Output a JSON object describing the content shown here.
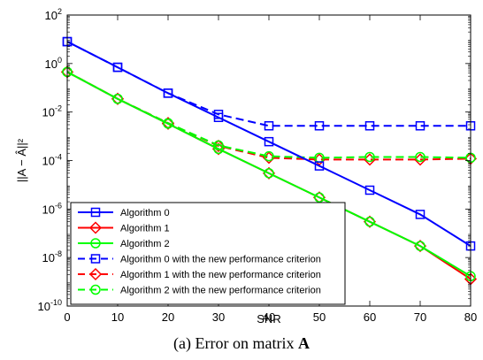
{
  "chart_data": {
    "type": "line",
    "xlabel": "SNR",
    "ylabel": "||A − Â||²",
    "x": [
      0,
      10,
      20,
      30,
      40,
      50,
      60,
      70,
      80
    ],
    "xlim": [
      0,
      80
    ],
    "ylim": [
      1e-10,
      100
    ],
    "y_scale": "log",
    "x_ticks": [
      "0",
      "10",
      "20",
      "30",
      "40",
      "50",
      "60",
      "70",
      "80"
    ],
    "y_ticks": [
      {
        "base": "10",
        "exp": "2",
        "value": 100
      },
      {
        "base": "10",
        "exp": "0",
        "value": 1
      },
      {
        "base": "10",
        "exp": "-2",
        "value": 0.01
      },
      {
        "base": "10",
        "exp": "-4",
        "value": 0.0001
      },
      {
        "base": "10",
        "exp": "-6",
        "value": 1e-06
      },
      {
        "base": "10",
        "exp": "-8",
        "value": 1e-08
      },
      {
        "base": "10",
        "exp": "-10",
        "value": 1e-10
      }
    ],
    "legend_position": "bottom-left",
    "series": [
      {
        "name": "Algorithm 0",
        "color": "#0000ff",
        "dash": "solid",
        "marker": "square",
        "values": [
          8,
          0.7,
          0.06,
          0.006,
          0.0006,
          6e-05,
          6e-06,
          6e-07,
          3e-08
        ]
      },
      {
        "name": "Algorithm 1",
        "color": "#ff0000",
        "dash": "solid",
        "marker": "diamond",
        "values": [
          0.45,
          0.035,
          0.0033,
          0.0003,
          3e-05,
          3e-06,
          3e-07,
          3e-08,
          1.3e-09
        ]
      },
      {
        "name": "Algorithm 2",
        "color": "#00ff00",
        "dash": "solid",
        "marker": "circle",
        "values": [
          0.45,
          0.035,
          0.0033,
          0.0003,
          3e-05,
          3e-06,
          3e-07,
          3e-08,
          1.7e-09
        ]
      },
      {
        "name": "Algorithm 0 with the new performance criterion",
        "color": "#0000ff",
        "dash": "dashed",
        "marker": "square",
        "values": [
          8,
          0.7,
          0.06,
          0.008,
          0.0027,
          0.0027,
          0.0027,
          0.0027,
          0.0027
        ]
      },
      {
        "name": "Algorithm 1 with the new performance criterion",
        "color": "#ff0000",
        "dash": "dashed",
        "marker": "diamond",
        "values": [
          0.45,
          0.035,
          0.0035,
          0.0004,
          0.00013,
          0.00011,
          0.00011,
          0.00011,
          0.00012
        ]
      },
      {
        "name": "Algorithm 2 with the new performance criterion",
        "color": "#00ff00",
        "dash": "dashed",
        "marker": "circle",
        "values": [
          0.45,
          0.035,
          0.0035,
          0.00042,
          0.00015,
          0.00013,
          0.00014,
          0.00014,
          0.00013
        ]
      }
    ]
  },
  "caption": {
    "prefix": "(a) Error on matrix ",
    "symbol": "A"
  }
}
